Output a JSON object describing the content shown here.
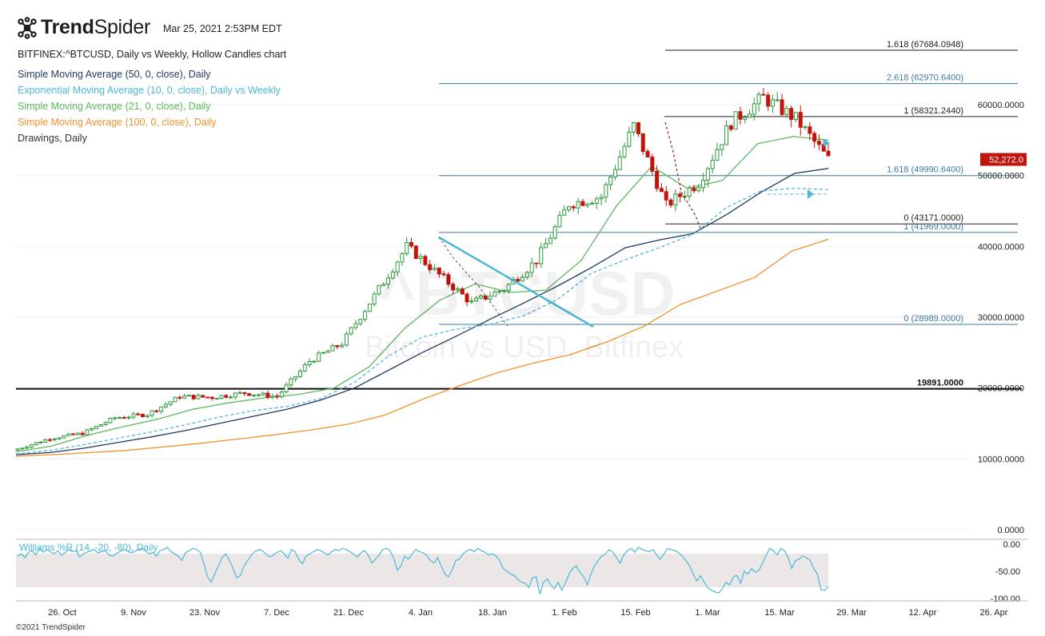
{
  "brand": {
    "name_bold": "Trend",
    "name_light": "Spider",
    "timestamp": "Mar 25, 2021 2:53PM EDT"
  },
  "header": {
    "symbol_line": "BITFINEX:^BTCUSD, Daily vs Weekly, Hollow Candles chart",
    "indicators": [
      {
        "text": "Simple Moving Average (50, 0, close), Daily",
        "color": "#1f3a5f"
      },
      {
        "text": "Exponential Moving Average (10, 0, close), Daily vs Weekly",
        "color": "#4cb8d8"
      },
      {
        "text": "Simple Moving Average (21, 0, close), Daily",
        "color": "#5cb85c"
      },
      {
        "text": "Simple Moving Average (100, 0, close), Daily",
        "color": "#f0922b"
      },
      {
        "text": "Drawings, Daily",
        "color": "#333333"
      }
    ]
  },
  "watermark": {
    "symbol": "^BTCUSD",
    "name": "Bitcoin vs USD, Bitfinex"
  },
  "footer": {
    "copyright": "©2021 TrendSpider"
  },
  "price_badge": {
    "text": "52,272.0",
    "value": 52272,
    "color": "#c0140c"
  },
  "oscillator": {
    "label": "Williams %R (14, -20, -80), Daily",
    "ticks": [
      "0.00",
      "-50.00",
      "-100.00"
    ],
    "values": [
      -22,
      -18,
      -25,
      -15,
      -12,
      -20,
      -8,
      -15,
      -10,
      -14,
      -18,
      -12,
      -20,
      -16,
      -10,
      -14,
      -12,
      -24,
      -18,
      -15,
      -12,
      -10,
      -16,
      -14,
      -12,
      -20,
      -22,
      -18,
      -14,
      -10,
      -12,
      -16,
      -14,
      -10,
      -8,
      -12,
      -18,
      -15,
      -22,
      -12,
      -10,
      -6,
      -14,
      -18,
      -22,
      -30,
      -16,
      -12,
      -8,
      -10,
      -15,
      -35,
      -60,
      -70,
      -55,
      -40,
      -25,
      -18,
      -30,
      -45,
      -62,
      -58,
      -40,
      -30,
      -20,
      -14,
      -10,
      -12,
      -18,
      -24,
      -20,
      -16,
      -12,
      -18,
      -26,
      -10,
      -14,
      -28,
      -36,
      -22,
      -18,
      -14,
      -10,
      -12,
      -16,
      -20,
      -14,
      -10,
      -12,
      -8,
      -10,
      -14,
      -18,
      -24,
      -16,
      -12,
      -20,
      -35,
      -28,
      -20,
      -10,
      -8,
      -12,
      -26,
      -48,
      -40,
      -22,
      -28,
      -18,
      -10,
      -14,
      -16,
      -20,
      -30,
      -35,
      -25,
      -40,
      -55,
      -60,
      -48,
      -30,
      -28,
      -18,
      -12,
      -10,
      -14,
      -8,
      -12,
      -15,
      -20,
      -18,
      -22,
      -30,
      -45,
      -50,
      -55,
      -58,
      -65,
      -70,
      -72,
      -80,
      -62,
      -60,
      -92,
      -70,
      -64,
      -75,
      -82,
      -70,
      -85,
      -72,
      -55,
      -45,
      -40,
      -52,
      -60,
      -75,
      -55,
      -40,
      -30,
      -22,
      -18,
      -10,
      -15,
      -25,
      -35,
      -20,
      -12,
      -8,
      -15,
      -6,
      -10,
      -12,
      -14,
      -10,
      -20,
      -28,
      -18,
      -8,
      -10,
      -12,
      -16,
      -22,
      -30,
      -40,
      -55,
      -68,
      -58,
      -70,
      -80,
      -85,
      -88,
      -90,
      -82,
      -70,
      -75,
      -60,
      -58,
      -72,
      -50,
      -55,
      -45,
      -52,
      -48,
      -35,
      -20,
      -8,
      -12,
      -20,
      -8,
      -12,
      -25,
      -45,
      -30,
      -28,
      -22,
      -25,
      -30,
      -45,
      -55,
      -84,
      -85,
      -78
    ]
  },
  "chart_data": {
    "type": "candlestick",
    "title": "BITFINEX:^BTCUSD, Daily vs Weekly, Hollow Candles chart",
    "y_ticks": [
      "0.0000",
      "10000.0000",
      "20000.0000",
      "30000.0000",
      "40000.0000",
      "50000.0000",
      "60000.0000"
    ],
    "ylim": [
      0,
      70000
    ],
    "x_ticks": [
      "26. Oct",
      "9. Nov",
      "23. Nov",
      "7. Dec",
      "21. Dec",
      "4. Jan",
      "18. Jan",
      "1. Feb",
      "15. Feb",
      "1. Mar",
      "15. Mar",
      "29. Mar",
      "12. Apr",
      "26. Apr"
    ],
    "weekly_closes": [
      11400,
      12900,
      13600,
      15800,
      16300,
      18800,
      18700,
      19300,
      18800,
      23800,
      26300,
      33000,
      40000,
      36000,
      32000,
      34000,
      38000,
      46000,
      47000,
      57000,
      45800,
      49000,
      57500,
      61000,
      58000,
      52272
    ],
    "series": [
      {
        "name": "Simple Moving Average (50, 0, close), Daily",
        "values": [
          10600,
          10900,
          11500,
          12300,
          13100,
          14000,
          15000,
          16000,
          17000,
          18300,
          20000,
          22500,
          25000,
          27300,
          29700,
          32000,
          34400,
          37000,
          39800,
          40900,
          41800,
          44500,
          47600,
          50300,
          51000
        ]
      },
      {
        "name": "Exponential Moving Average (10, 0, close), Daily vs Weekly",
        "values": [
          10700,
          11200,
          12000,
          12900,
          13800,
          14800,
          15900,
          16800,
          17400,
          18500,
          20800,
          24500,
          27200,
          28300,
          29000,
          30200,
          32500,
          36200,
          38100,
          39800,
          41700,
          45500,
          47800,
          48200,
          48000
        ]
      },
      {
        "name": "Simple Moving Average (21, 0, close), Daily",
        "values": [
          11000,
          11800,
          13300,
          14500,
          15600,
          17000,
          17900,
          18600,
          19100,
          20000,
          23000,
          28400,
          32400,
          34700,
          33500,
          33800,
          38000,
          45700,
          51300,
          48200,
          49300,
          54500,
          55500,
          55000
        ]
      },
      {
        "name": "Simple Moving Average (100, 0, close), Daily",
        "values": [
          10400,
          10600,
          10900,
          11200,
          11700,
          12200,
          12800,
          13400,
          14100,
          14900,
          16200,
          18400,
          20300,
          22100,
          23500,
          24700,
          26500,
          28700,
          31800,
          33700,
          35600,
          39300,
          41000
        ]
      }
    ],
    "levels": [
      {
        "label": "1.618 (67684.0948)",
        "value": 67684.0948
      },
      {
        "label": "2.618 (62970.6400)",
        "value": 62970.64
      },
      {
        "label": "1 (58321.2440)",
        "value": 58321.244
      },
      {
        "label": "1.618 (49990.6400)",
        "value": 49990.64
      },
      {
        "label": "0 (43171.0000)",
        "value": 43171
      },
      {
        "label": "1 (41969.0000)",
        "value": 41969
      },
      {
        "label": "0 (28989.0000)",
        "value": 28989
      },
      {
        "label": "19891.0000",
        "value": 19891
      }
    ],
    "grid": true,
    "legend": "top-left"
  }
}
